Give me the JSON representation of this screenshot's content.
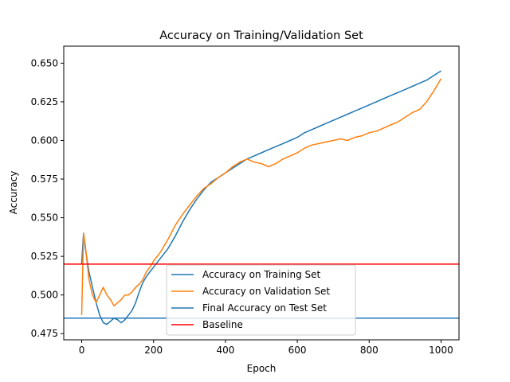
{
  "chart_data": {
    "type": "line",
    "title": "Accuracy on Training/Validation Set",
    "xlabel": "Epoch",
    "ylabel": "Accuracy",
    "xlim": [
      -50,
      1050
    ],
    "ylim": [
      0.471,
      0.661
    ],
    "xticks": [
      0,
      200,
      400,
      600,
      800,
      1000
    ],
    "yticks": [
      0.475,
      0.5,
      0.525,
      0.55,
      0.575,
      0.6,
      0.625,
      0.65
    ],
    "ytick_labels": [
      "0.475",
      "0.500",
      "0.525",
      "0.550",
      "0.575",
      "0.600",
      "0.625",
      "0.650"
    ],
    "grid": false,
    "legend_position": "lower-center",
    "series": [
      {
        "name": "Accuracy on Training Set",
        "kind": "line",
        "color": "#1f77b4",
        "x": [
          0,
          5,
          10,
          20,
          30,
          40,
          50,
          60,
          70,
          80,
          90,
          100,
          110,
          120,
          130,
          140,
          150,
          160,
          170,
          180,
          190,
          200,
          220,
          240,
          260,
          280,
          300,
          320,
          340,
          360,
          380,
          400,
          420,
          440,
          460,
          480,
          500,
          520,
          540,
          560,
          580,
          600,
          620,
          640,
          660,
          680,
          700,
          720,
          740,
          760,
          780,
          800,
          820,
          840,
          860,
          880,
          900,
          920,
          940,
          960,
          980,
          1000
        ],
        "values": [
          0.52,
          0.54,
          0.53,
          0.515,
          0.505,
          0.495,
          0.487,
          0.482,
          0.481,
          0.483,
          0.485,
          0.484,
          0.482,
          0.484,
          0.487,
          0.49,
          0.495,
          0.502,
          0.508,
          0.512,
          0.515,
          0.518,
          0.524,
          0.53,
          0.538,
          0.547,
          0.555,
          0.562,
          0.568,
          0.573,
          0.576,
          0.579,
          0.582,
          0.585,
          0.588,
          0.59,
          0.592,
          0.594,
          0.596,
          0.598,
          0.6,
          0.602,
          0.605,
          0.607,
          0.609,
          0.611,
          0.613,
          0.615,
          0.617,
          0.619,
          0.621,
          0.623,
          0.625,
          0.627,
          0.629,
          0.631,
          0.633,
          0.635,
          0.637,
          0.639,
          0.642,
          0.645
        ]
      },
      {
        "name": "Accuracy on Validation Set",
        "kind": "line",
        "color": "#ff7f0e",
        "x": [
          0,
          5,
          10,
          20,
          30,
          40,
          50,
          60,
          70,
          80,
          90,
          100,
          110,
          120,
          130,
          140,
          150,
          160,
          170,
          180,
          190,
          200,
          220,
          240,
          260,
          280,
          300,
          320,
          340,
          360,
          380,
          400,
          420,
          440,
          460,
          480,
          500,
          520,
          540,
          560,
          580,
          600,
          620,
          640,
          660,
          680,
          700,
          720,
          740,
          760,
          780,
          800,
          820,
          840,
          860,
          880,
          900,
          920,
          940,
          960,
          980,
          1000
        ],
        "values": [
          0.487,
          0.54,
          0.532,
          0.51,
          0.5,
          0.495,
          0.5,
          0.505,
          0.5,
          0.497,
          0.493,
          0.495,
          0.497,
          0.5,
          0.5,
          0.502,
          0.505,
          0.507,
          0.51,
          0.515,
          0.518,
          0.522,
          0.528,
          0.536,
          0.545,
          0.552,
          0.558,
          0.564,
          0.569,
          0.572,
          0.576,
          0.579,
          0.583,
          0.586,
          0.588,
          0.586,
          0.585,
          0.583,
          0.585,
          0.588,
          0.59,
          0.592,
          0.595,
          0.597,
          0.598,
          0.599,
          0.6,
          0.601,
          0.6,
          0.602,
          0.603,
          0.605,
          0.606,
          0.608,
          0.61,
          0.612,
          0.615,
          0.618,
          0.62,
          0.625,
          0.632,
          0.64
        ]
      },
      {
        "name": "Final Accuracy on Test Set",
        "kind": "hline",
        "color": "#1f77b4",
        "value": 0.485
      },
      {
        "name": "Baseline",
        "kind": "hline",
        "color": "#ff0000",
        "value": 0.52
      }
    ]
  }
}
